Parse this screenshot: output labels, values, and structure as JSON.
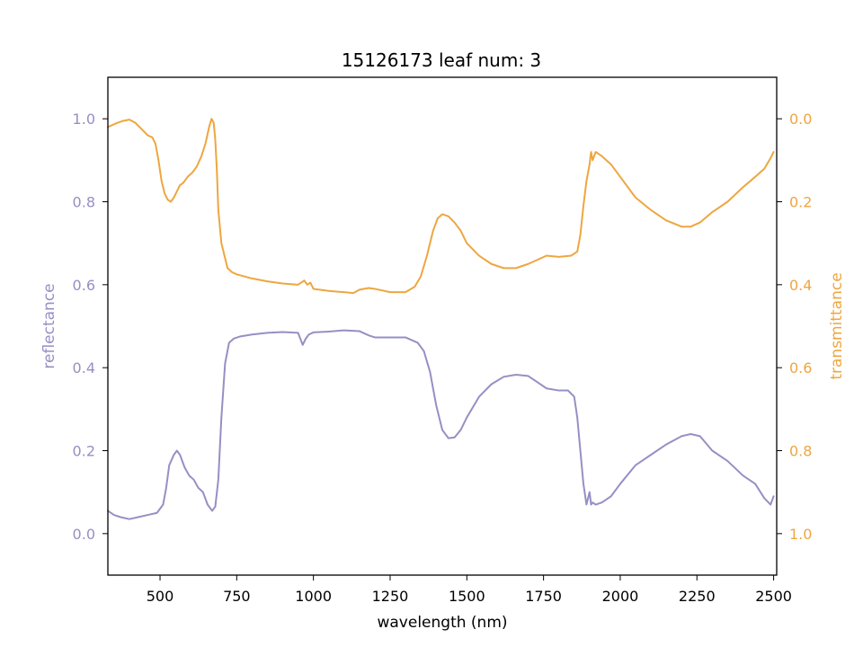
{
  "chart_data": {
    "type": "line",
    "title": "15126173 leaf num: 3",
    "xlabel": "wavelength (nm)",
    "xlim": [
      330,
      2510
    ],
    "xticks": [
      500,
      750,
      1000,
      1250,
      1500,
      1750,
      2000,
      2250,
      2500
    ],
    "axes": {
      "left": {
        "label": "reflectance",
        "ylim": [
          -0.1,
          1.1
        ],
        "inverted": false,
        "ticks": [
          0.0,
          0.2,
          0.4,
          0.6,
          0.8,
          1.0
        ],
        "tick_labels": [
          "0.0",
          "0.2",
          "0.4",
          "0.6",
          "0.8",
          "1.0"
        ],
        "color": "#9590c4"
      },
      "right": {
        "label": "transmittance",
        "ylim": [
          1.1,
          -0.1
        ],
        "inverted": true,
        "ticks": [
          0.0,
          0.2,
          0.4,
          0.6,
          0.8,
          1.0
        ],
        "tick_labels": [
          "0.0",
          "0.2",
          "0.4",
          "0.6",
          "0.8",
          "1.0"
        ],
        "color": "#eea640"
      }
    },
    "grid": false,
    "series": [
      {
        "key": "reflectance",
        "axis": "left",
        "color": "#9590c4",
        "x": [
          330,
          350,
          370,
          400,
          430,
          460,
          490,
          510,
          520,
          530,
          545,
          555,
          565,
          580,
          595,
          610,
          625,
          640,
          655,
          670,
          680,
          690,
          700,
          712,
          725,
          740,
          760,
          800,
          850,
          900,
          950,
          965,
          975,
          985,
          1000,
          1050,
          1100,
          1150,
          1180,
          1200,
          1250,
          1300,
          1340,
          1360,
          1380,
          1400,
          1420,
          1440,
          1460,
          1480,
          1500,
          1540,
          1580,
          1620,
          1660,
          1700,
          1730,
          1760,
          1800,
          1830,
          1850,
          1860,
          1870,
          1880,
          1890,
          1900,
          1905,
          1910,
          1920,
          1940,
          1970,
          2000,
          2050,
          2100,
          2150,
          2200,
          2230,
          2260,
          2300,
          2350,
          2400,
          2440,
          2470,
          2490,
          2500
        ],
        "y": [
          0.055,
          0.045,
          0.04,
          0.035,
          0.04,
          0.045,
          0.05,
          0.07,
          0.11,
          0.165,
          0.19,
          0.2,
          0.19,
          0.16,
          0.14,
          0.13,
          0.11,
          0.1,
          0.07,
          0.055,
          0.065,
          0.13,
          0.28,
          0.41,
          0.46,
          0.47,
          0.475,
          0.48,
          0.484,
          0.486,
          0.484,
          0.455,
          0.47,
          0.48,
          0.485,
          0.487,
          0.49,
          0.488,
          0.478,
          0.473,
          0.473,
          0.473,
          0.46,
          0.44,
          0.39,
          0.31,
          0.25,
          0.23,
          0.232,
          0.25,
          0.28,
          0.33,
          0.36,
          0.378,
          0.383,
          0.38,
          0.365,
          0.35,
          0.345,
          0.345,
          0.33,
          0.28,
          0.2,
          0.12,
          0.07,
          0.1,
          0.07,
          0.075,
          0.07,
          0.075,
          0.09,
          0.12,
          0.165,
          0.19,
          0.215,
          0.235,
          0.24,
          0.235,
          0.2,
          0.175,
          0.14,
          0.12,
          0.085,
          0.07,
          0.09
        ]
      },
      {
        "key": "transmittance",
        "axis": "right",
        "color": "#eea640",
        "x": [
          330,
          345,
          360,
          380,
          400,
          420,
          440,
          460,
          475,
          485,
          495,
          505,
          515,
          525,
          535,
          545,
          555,
          565,
          575,
          590,
          605,
          620,
          635,
          648,
          660,
          668,
          675,
          680,
          685,
          690,
          700,
          710,
          720,
          735,
          750,
          800,
          850,
          900,
          950,
          970,
          980,
          990,
          1000,
          1050,
          1100,
          1130,
          1150,
          1180,
          1200,
          1250,
          1300,
          1330,
          1350,
          1370,
          1390,
          1405,
          1420,
          1440,
          1460,
          1480,
          1500,
          1540,
          1580,
          1620,
          1660,
          1700,
          1730,
          1760,
          1800,
          1840,
          1860,
          1870,
          1880,
          1890,
          1900,
          1905,
          1910,
          1920,
          1940,
          1970,
          2000,
          2050,
          2100,
          2150,
          2200,
          2230,
          2260,
          2300,
          2350,
          2400,
          2440,
          2470,
          2490,
          2500
        ],
        "y": [
          0.02,
          0.015,
          0.01,
          0.005,
          0.002,
          0.01,
          0.025,
          0.04,
          0.045,
          0.06,
          0.1,
          0.15,
          0.18,
          0.195,
          0.2,
          0.19,
          0.175,
          0.16,
          0.155,
          0.14,
          0.13,
          0.115,
          0.09,
          0.06,
          0.02,
          0.0,
          0.01,
          0.05,
          0.12,
          0.22,
          0.3,
          0.33,
          0.36,
          0.37,
          0.375,
          0.385,
          0.392,
          0.397,
          0.4,
          0.39,
          0.4,
          0.395,
          0.41,
          0.415,
          0.418,
          0.42,
          0.412,
          0.408,
          0.41,
          0.418,
          0.418,
          0.405,
          0.38,
          0.33,
          0.27,
          0.24,
          0.23,
          0.235,
          0.25,
          0.27,
          0.3,
          0.33,
          0.35,
          0.36,
          0.36,
          0.35,
          0.34,
          0.33,
          0.333,
          0.33,
          0.32,
          0.28,
          0.21,
          0.15,
          0.11,
          0.08,
          0.1,
          0.08,
          0.09,
          0.11,
          0.14,
          0.19,
          0.22,
          0.245,
          0.26,
          0.26,
          0.25,
          0.225,
          0.2,
          0.165,
          0.14,
          0.12,
          0.095,
          0.08
        ]
      }
    ]
  }
}
